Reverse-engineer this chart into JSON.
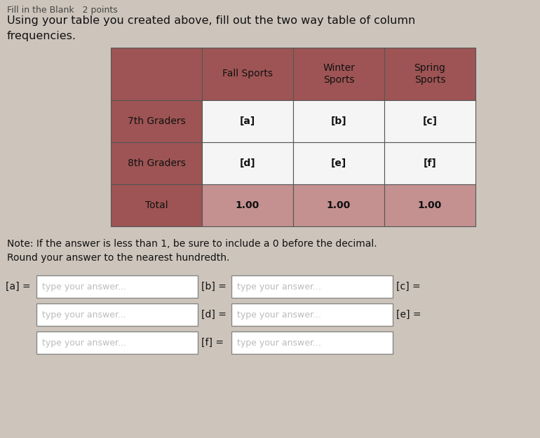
{
  "title_line1": "Using your table you created above, fill out the two way table of column",
  "title_line2": "frequencies.",
  "header_text": "Fill in the Blank   2 points",
  "col_headers": [
    "Fall Sports",
    "Winter\nSports",
    "Spring\nSports"
  ],
  "row_labels": [
    "7th Graders",
    "8th Graders",
    "Total"
  ],
  "cell_data": [
    [
      "[a]",
      "[b]",
      "[c]"
    ],
    [
      "[d]",
      "[e]",
      "[f]"
    ],
    [
      "1.00",
      "1.00",
      "1.00"
    ]
  ],
  "note_line1": "Note: If the answer is less than 1, be sure to include a 0 before the decimal.",
  "note_line2": "Round your answer to the nearest hundredth.",
  "header_bg": "#9e5454",
  "cell_bg_white": "#f5f5f5",
  "total_row_bg": "#c49090",
  "bg_color": "#cdc5bc",
  "border_color": "#555555"
}
